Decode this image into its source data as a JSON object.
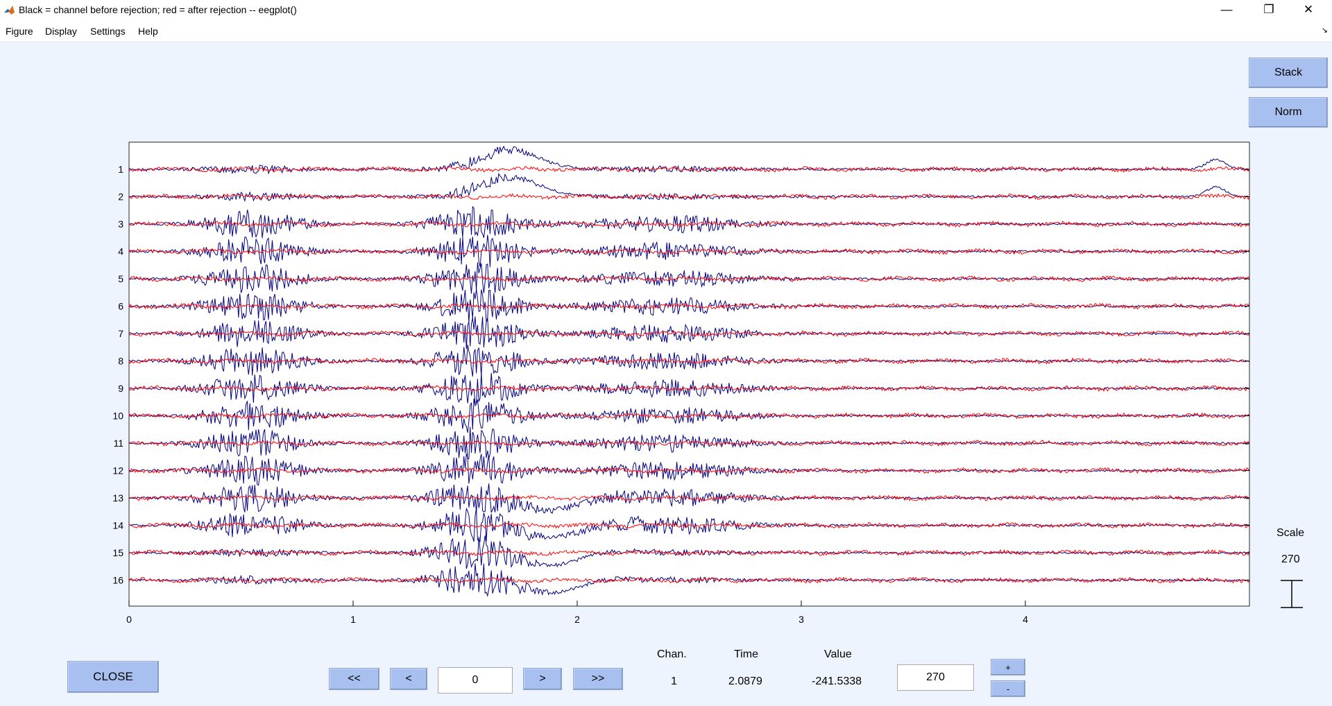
{
  "window": {
    "title": "Black = channel before rejection; red = after rejection -- eegplot()",
    "controls": {
      "minimize": "—",
      "restore": "❐",
      "close": "✕"
    }
  },
  "menu": {
    "items": [
      "Figure",
      "Display",
      "Settings",
      "Help"
    ]
  },
  "side_buttons": {
    "stack": "Stack",
    "norm": "Norm"
  },
  "scale": {
    "label": "Scale",
    "value": "270"
  },
  "chart_data": {
    "type": "line",
    "title": "",
    "xlabel": "",
    "ylabel": "",
    "xlim": [
      0,
      5
    ],
    "x_ticks": [
      "0",
      "1",
      "2",
      "3",
      "4"
    ],
    "channels": [
      "1",
      "2",
      "3",
      "4",
      "5",
      "6",
      "7",
      "8",
      "9",
      "10",
      "11",
      "12",
      "13",
      "14",
      "15",
      "16"
    ],
    "series": [
      {
        "color": "#000080"
      },
      {
        "color": "#ff0000"
      }
    ],
    "grid": false
  },
  "bottom": {
    "close_label": "CLOSE",
    "nav": {
      "first": "<<",
      "prev": "<",
      "pos": "0",
      "next": ">",
      "last": ">>"
    },
    "readout": {
      "chan_label": "Chan.",
      "time_label": "Time",
      "value_label": "Value",
      "chan": "1",
      "time": "2.0879",
      "value": "-241.5338"
    },
    "scale_input": "270",
    "plus": "+",
    "minus": "-"
  }
}
